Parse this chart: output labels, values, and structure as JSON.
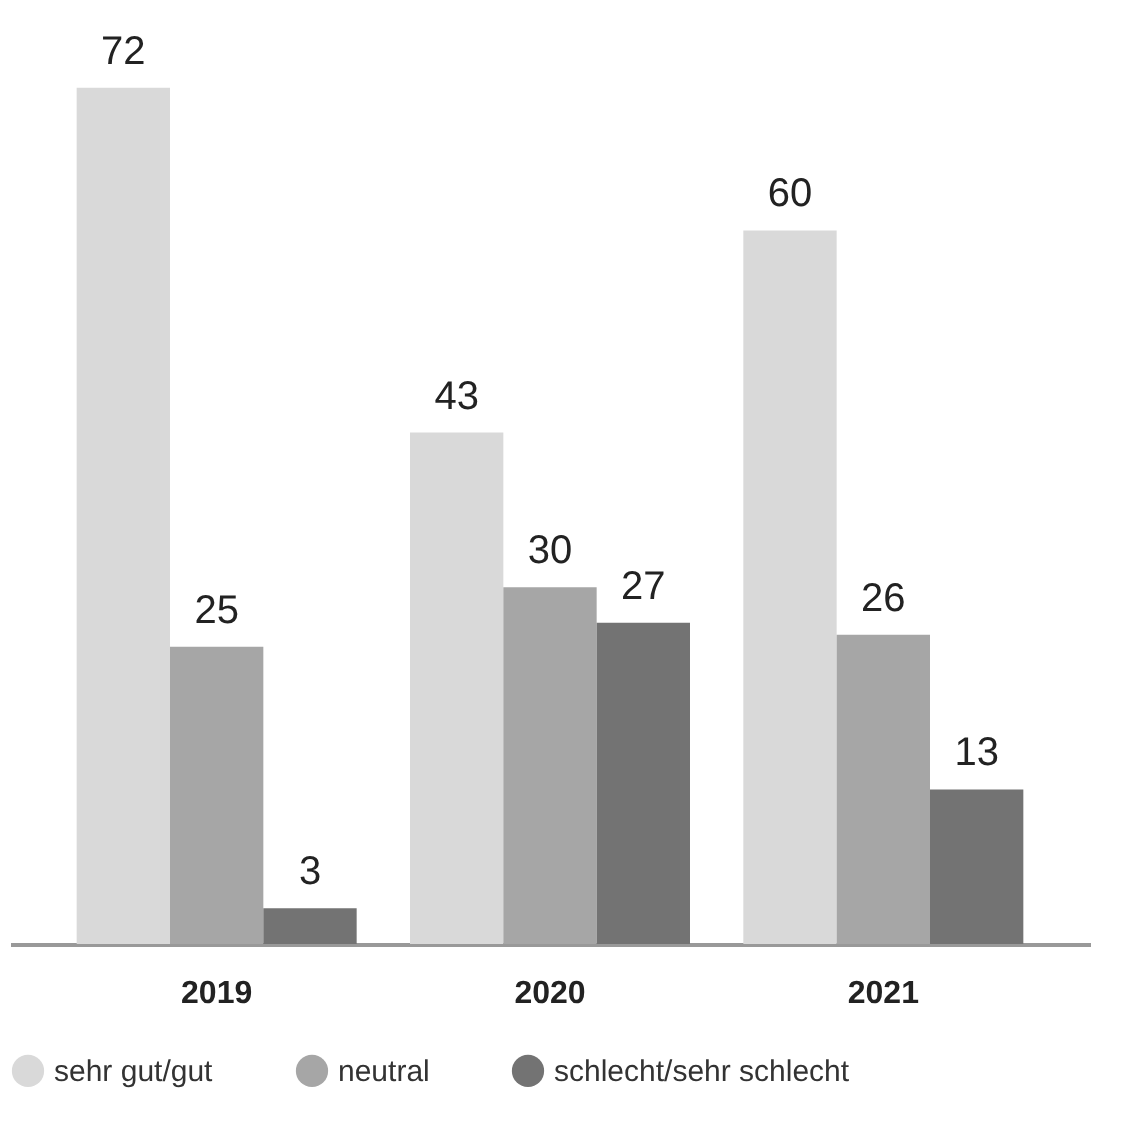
{
  "chart_data": {
    "type": "bar",
    "categories": [
      "2019",
      "2020",
      "2021"
    ],
    "series": [
      {
        "name": "sehr gut/gut",
        "color": "#d9d9d9",
        "values": [
          72,
          43,
          60
        ]
      },
      {
        "name": "neutral",
        "color": "#a6a6a6",
        "values": [
          25,
          30,
          26
        ]
      },
      {
        "name": "schlecht/sehr schlecht",
        "color": "#737373",
        "values": [
          3,
          27,
          13
        ]
      }
    ],
    "data_labels": true,
    "legend": "bottom",
    "tick_labels": "x"
  }
}
